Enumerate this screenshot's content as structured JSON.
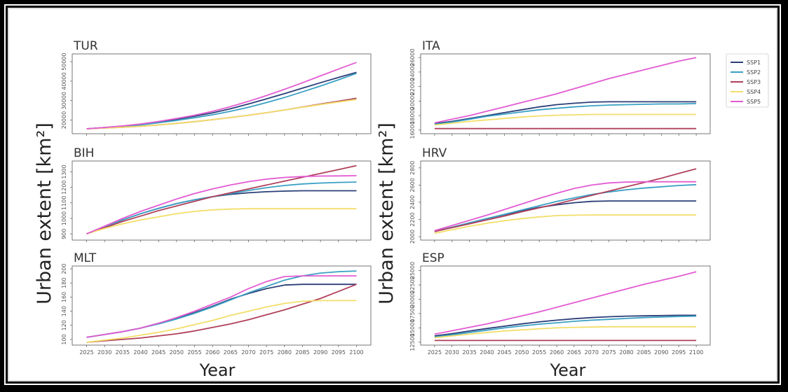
{
  "chart_data": {
    "type": "line",
    "ylabel": "Urban extent [km²]",
    "xlabel": "Year",
    "x": [
      2025,
      2030,
      2035,
      2040,
      2045,
      2050,
      2055,
      2060,
      2065,
      2070,
      2075,
      2080,
      2085,
      2090,
      2095,
      2100
    ],
    "x_tick_labels": [
      "2025",
      "2030",
      "2035",
      "2040",
      "2045",
      "2050",
      "2055",
      "2060",
      "2065",
      "2070",
      "2075",
      "2080",
      "2085",
      "2090",
      "2095",
      "2100"
    ],
    "legend": {
      "placement": "right",
      "entries": [
        "SSP1",
        "SSP2",
        "SSP3",
        "SSP4",
        "SSP5"
      ]
    },
    "series_colors": {
      "SSP1": "#2b3f78",
      "SSP2": "#3aa0c4",
      "SSP3": "#b0405a",
      "SSP4": "#f2de6a",
      "SSP5": "#e25bd2"
    },
    "panels": [
      {
        "title": "TUR",
        "ylim": [
          13000,
          54000
        ],
        "yticks": [
          20000,
          30000,
          40000,
          50000
        ],
        "ytick_labels": [
          "20000",
          "30000",
          "40000",
          "50000"
        ],
        "series": [
          {
            "name": "SSP1",
            "values": [
              15500,
              16200,
              16900,
              17800,
              19000,
              20400,
              22000,
              23700,
              25800,
              28300,
              30900,
              33600,
              36400,
              39200,
              41900,
              44500
            ]
          },
          {
            "name": "SSP2",
            "values": [
              15500,
              16100,
              16700,
              17500,
              18600,
              19800,
              21200,
              22700,
              24500,
              26600,
              29000,
              31600,
              34500,
              37500,
              40700,
              44000
            ]
          },
          {
            "name": "SSP3",
            "values": [
              15500,
              15900,
              16300,
              16800,
              17500,
              18300,
              19200,
              20200,
              21300,
              22500,
              23800,
              25200,
              26700,
              28200,
              29700,
              31200
            ]
          },
          {
            "name": "SSP4",
            "values": [
              15500,
              15900,
              16300,
              16800,
              17500,
              18300,
              19200,
              20200,
              21300,
              22500,
              23800,
              25200,
              26600,
              28000,
              29300,
              30600
            ]
          },
          {
            "name": "SSP5",
            "values": [
              15500,
              16200,
              17000,
              18000,
              19300,
              20800,
              22500,
              24500,
              26900,
              29600,
              32600,
              35800,
              39200,
              42700,
              46200,
              49600
            ]
          }
        ]
      },
      {
        "title": "ITA",
        "ylim": [
          15500,
          26500
        ],
        "yticks": [
          16000,
          18000,
          20000,
          22000,
          24000,
          26000
        ],
        "ytick_labels": [
          "16000",
          "18000",
          "20000",
          "22000",
          "24000",
          "26000"
        ],
        "series": [
          {
            "name": "SSP1",
            "values": [
              16900,
              17200,
              17600,
              18000,
              18400,
              18800,
              19200,
              19500,
              19700,
              19850,
              19900,
              19900,
              19900,
              19900,
              19900,
              19900
            ]
          },
          {
            "name": "SSP2",
            "values": [
              16800,
              17100,
              17500,
              17900,
              18200,
              18500,
              18800,
              19000,
              19200,
              19350,
              19450,
              19500,
              19550,
              19600,
              19600,
              19650
            ]
          },
          {
            "name": "SSP3",
            "values": [
              16200,
              16200,
              16200,
              16200,
              16200,
              16200,
              16200,
              16200,
              16200,
              16200,
              16200,
              16200,
              16200,
              16200,
              16200,
              16200
            ]
          },
          {
            "name": "SSP4",
            "values": [
              16700,
              16950,
              17200,
              17400,
              17600,
              17800,
              17950,
              18050,
              18100,
              18150,
              18150,
              18150,
              18150,
              18150,
              18150,
              18150
            ]
          },
          {
            "name": "SSP5",
            "values": [
              17000,
              17500,
              18000,
              18600,
              19200,
              19800,
              20400,
              21000,
              21700,
              22400,
              23100,
              23700,
              24300,
              24900,
              25500,
              26000
            ]
          }
        ]
      },
      {
        "title": "BIH",
        "ylim": [
          860,
          1370
        ],
        "yticks": [
          900,
          1000,
          1100,
          1200,
          1300
        ],
        "ytick_labels": [
          "900",
          "1000",
          "1100",
          "1200",
          "1300"
        ],
        "series": [
          {
            "name": "SSP1",
            "values": [
              900,
              945,
              990,
              1030,
              1065,
              1095,
              1120,
              1140,
              1155,
              1165,
              1172,
              1176,
              1178,
              1178,
              1178,
              1178
            ]
          },
          {
            "name": "SSP2",
            "values": [
              900,
              945,
              990,
              1030,
              1065,
              1095,
              1120,
              1140,
              1160,
              1180,
              1198,
              1212,
              1222,
              1228,
              1232,
              1234
            ]
          },
          {
            "name": "SSP3",
            "values": [
              900,
              940,
              980,
              1015,
              1050,
              1080,
              1110,
              1140,
              1165,
              1190,
              1215,
              1240,
              1265,
              1290,
              1315,
              1340
            ]
          },
          {
            "name": "SSP4",
            "values": [
              900,
              935,
              965,
              990,
              1010,
              1030,
              1045,
              1055,
              1060,
              1062,
              1062,
              1062,
              1062,
              1062,
              1062,
              1062
            ]
          },
          {
            "name": "SSP5",
            "values": [
              900,
              950,
              1000,
              1045,
              1085,
              1125,
              1160,
              1190,
              1215,
              1237,
              1253,
              1264,
              1270,
              1273,
              1274,
              1275
            ]
          }
        ]
      },
      {
        "title": "HRV",
        "ylim": [
          1960,
          2880
        ],
        "yticks": [
          2000,
          2200,
          2400,
          2600,
          2800
        ],
        "ytick_labels": [
          "2000",
          "2200",
          "2400",
          "2600",
          "2800"
        ],
        "series": [
          {
            "name": "SSP1",
            "values": [
              2060,
              2110,
              2160,
              2210,
              2255,
              2300,
              2340,
              2370,
              2395,
              2410,
              2415,
              2415,
              2415,
              2415,
              2415,
              2415
            ]
          },
          {
            "name": "SSP2",
            "values": [
              2060,
              2110,
              2160,
              2210,
              2260,
              2310,
              2360,
              2410,
              2450,
              2490,
              2520,
              2545,
              2565,
              2580,
              2595,
              2605
            ]
          },
          {
            "name": "SSP3",
            "values": [
              2060,
              2105,
              2150,
              2195,
              2240,
              2290,
              2335,
              2380,
              2430,
              2480,
              2530,
              2580,
              2630,
              2680,
              2735,
              2790
            ]
          },
          {
            "name": "SSP4",
            "values": [
              2040,
              2080,
              2120,
              2155,
              2185,
              2210,
              2230,
              2245,
              2250,
              2252,
              2252,
              2252,
              2252,
              2252,
              2252,
              2252
            ]
          },
          {
            "name": "SSP5",
            "values": [
              2070,
              2130,
              2190,
              2250,
              2315,
              2380,
              2445,
              2505,
              2560,
              2600,
              2625,
              2635,
              2638,
              2638,
              2638,
              2638
            ]
          }
        ]
      },
      {
        "title": "MLT",
        "ylim": [
          92,
          204
        ],
        "yticks": [
          100,
          120,
          140,
          160,
          180,
          200
        ],
        "ytick_labels": [
          "100",
          "120",
          "140",
          "160",
          "180",
          "200"
        ],
        "series": [
          {
            "name": "SSP1",
            "values": [
              103,
              107,
              111,
              116,
              123,
              130,
              138,
              147,
              157,
              165,
              172,
              177,
              178,
              178,
              178,
              178
            ]
          },
          {
            "name": "SSP2",
            "values": [
              103,
              107,
              111,
              116,
              122,
              129,
              137,
              146,
              156,
              166,
              175,
              184,
              190,
              194,
              196,
              197
            ]
          },
          {
            "name": "SSP3",
            "values": [
              96,
              98,
              100,
              102,
              105,
              108,
              112,
              117,
              122,
              128,
              135,
              142,
              150,
              158,
              168,
              178
            ]
          },
          {
            "name": "SSP4",
            "values": [
              96,
              99,
              102,
              106,
              110,
              115,
              121,
              127,
              134,
              140,
              146,
              151,
              154,
              155,
              155,
              155
            ]
          },
          {
            "name": "SSP5",
            "values": [
              103,
              107,
              111,
              116,
              123,
              131,
              140,
              150,
              160,
              172,
              182,
              189,
              190,
              190,
              190,
              190
            ]
          }
        ]
      },
      {
        "title": "ESP",
        "ylim": [
          12000,
          25800
        ],
        "yticks": [
          12500,
          15000,
          17500,
          20000,
          22500,
          25000
        ],
        "ytick_labels": [
          "12500",
          "15000",
          "17500",
          "20000",
          "22500",
          "25000"
        ],
        "series": [
          {
            "name": "SSP1",
            "values": [
              13600,
              14000,
              14450,
              14900,
              15300,
              15700,
              16050,
              16350,
              16600,
              16800,
              16950,
              17050,
              17100,
              17150,
              17200,
              17200
            ]
          },
          {
            "name": "SSP2",
            "values": [
              13400,
              13800,
              14200,
              14600,
              15000,
              15350,
              15650,
              15900,
              16150,
              16350,
              16500,
              16650,
              16800,
              16900,
              17000,
              17050
            ]
          },
          {
            "name": "SSP3",
            "values": [
              12800,
              12800,
              12800,
              12800,
              12800,
              12800,
              12800,
              12800,
              12800,
              12800,
              12800,
              12800,
              12800,
              12800,
              12800,
              12800
            ]
          },
          {
            "name": "SSP4",
            "values": [
              13300,
              13600,
              13900,
              14200,
              14450,
              14650,
              14850,
              15000,
              15100,
              15150,
              15200,
              15200,
              15200,
              15200,
              15200,
              15200
            ]
          },
          {
            "name": "SSP5",
            "values": [
              13900,
              14500,
              15100,
              15700,
              16400,
              17100,
              17800,
              18600,
              19400,
              20200,
              21000,
              21800,
              22600,
              23300,
              24000,
              24800
            ]
          }
        ]
      }
    ]
  }
}
